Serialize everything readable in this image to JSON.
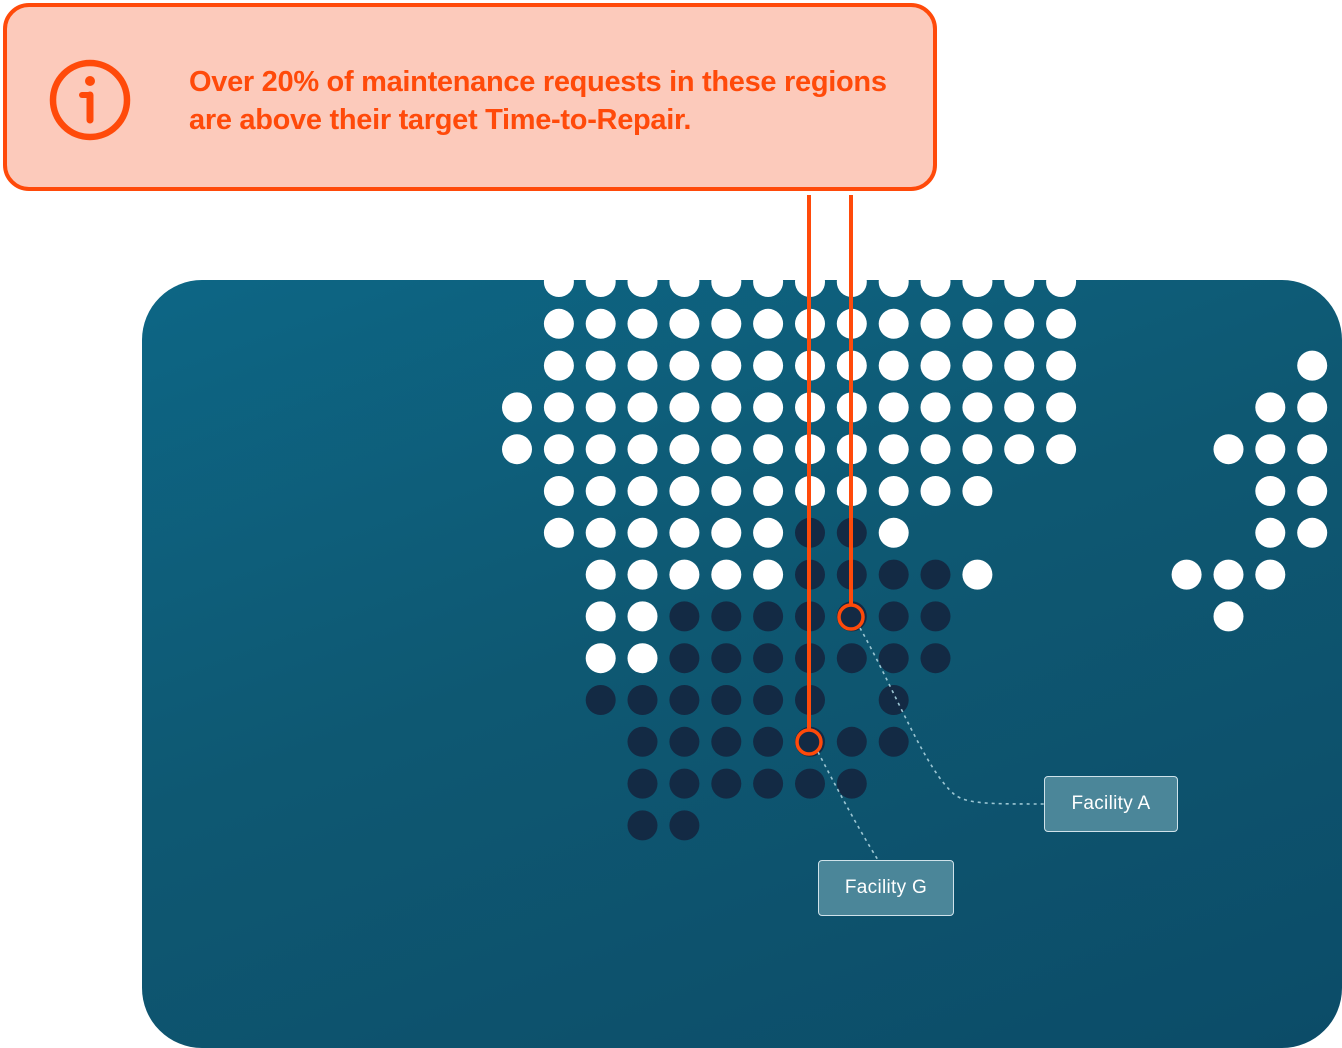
{
  "alert": {
    "icon": "info-icon",
    "message": "Over 20% of maintenance requests in these regions are above their target Time-to-Repair.",
    "color": "#ff4a0a",
    "background": "#fccabb"
  },
  "map": {
    "background": "#0e5b78",
    "dot_color_normal": "#ffffff",
    "dot_color_flagged": "#132a44",
    "facilities": [
      {
        "id": "A",
        "label": "Facility A"
      },
      {
        "id": "G",
        "label": "Facility G"
      }
    ]
  }
}
